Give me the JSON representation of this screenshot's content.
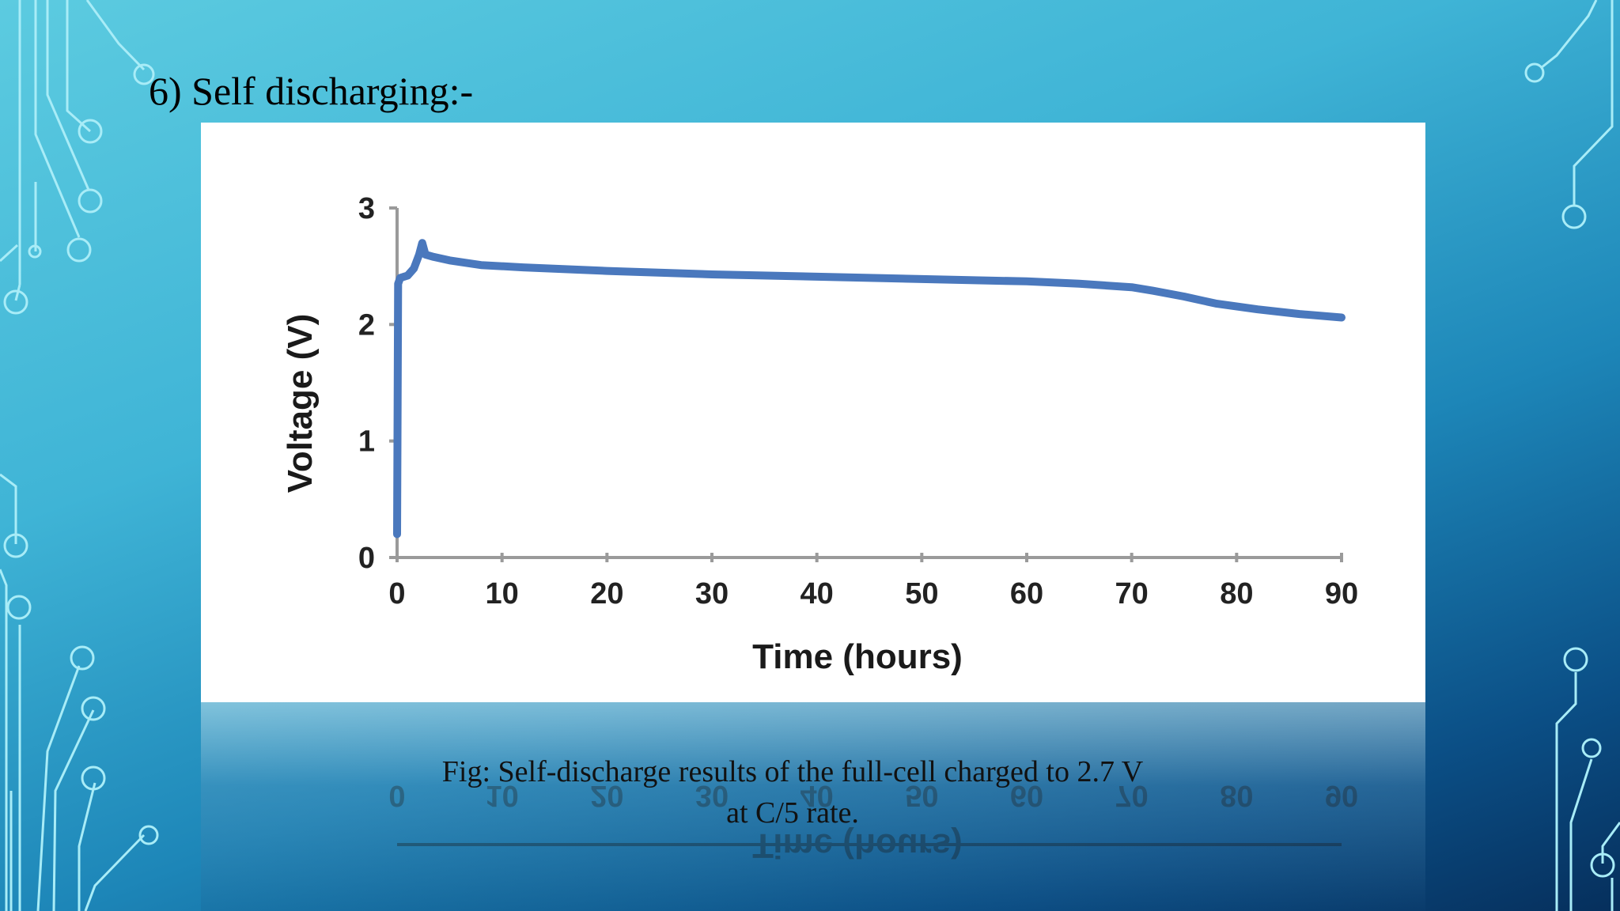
{
  "slide": {
    "title": "6) Self discharging:-",
    "caption_line1": "Fig: Self-discharge results of the full-cell charged to 2.7 V",
    "caption_line2": "at C/5 rate."
  },
  "colors": {
    "background_top": "#5ccbe0",
    "background_bottom": "#062f5c",
    "line": "#4a78bd",
    "circuit": "#a8ecf7"
  },
  "chart_data": {
    "type": "line",
    "title": "",
    "xlabel": "Time (hours)",
    "ylabel": "Voltage (V)",
    "xlim": [
      0,
      90
    ],
    "ylim": [
      0,
      3
    ],
    "xticks": [
      0,
      10,
      20,
      30,
      40,
      50,
      60,
      70,
      80,
      90
    ],
    "yticks": [
      0,
      1,
      2,
      3
    ],
    "grid": false,
    "series": [
      {
        "x": [
          0,
          0.1,
          0.3,
          1.0,
          1.6,
          2.1,
          2.4,
          2.7,
          3.5,
          5,
          8,
          12,
          20,
          30,
          40,
          50,
          60,
          65,
          70,
          72,
          75,
          78,
          82,
          86,
          90
        ],
        "y": [
          0.2,
          2.35,
          2.4,
          2.42,
          2.48,
          2.6,
          2.7,
          2.6,
          2.58,
          2.55,
          2.51,
          2.49,
          2.46,
          2.43,
          2.41,
          2.39,
          2.37,
          2.35,
          2.32,
          2.29,
          2.24,
          2.18,
          2.13,
          2.09,
          2.06
        ]
      }
    ]
  }
}
